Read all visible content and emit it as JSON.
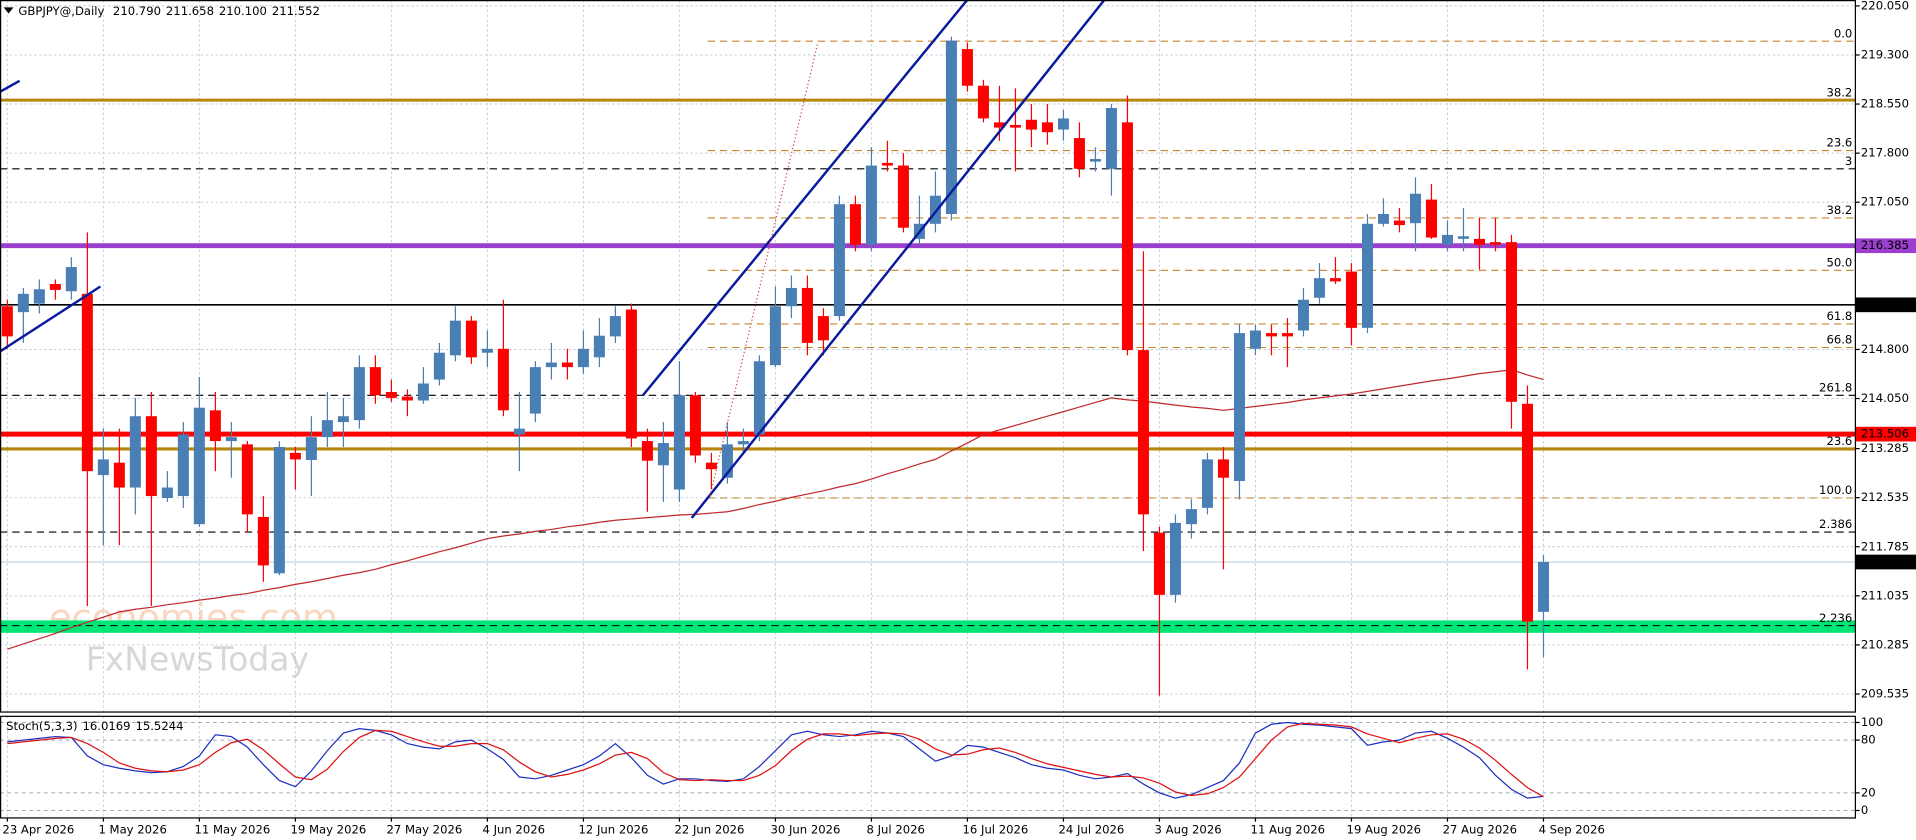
{
  "chart_data": [
    {
      "type": "candlestick",
      "title": "GBPJPY@,Daily",
      "ohlc_labels": [
        "210.790",
        "211.658",
        "210.100",
        "211.552"
      ],
      "categories": [
        "23 Apr 2026",
        null,
        null,
        null,
        null,
        null,
        "1 May 2026",
        null,
        null,
        null,
        null,
        null,
        "11 May 2026",
        null,
        null,
        null,
        null,
        null,
        "19 May 2026",
        null,
        null,
        null,
        null,
        null,
        "27 May 2026",
        null,
        null,
        null,
        null,
        null,
        "4 Jun 2026",
        null,
        null,
        null,
        null,
        null,
        "12 Jun 2026",
        null,
        null,
        null,
        null,
        null,
        "22 Jun 2026",
        null,
        null,
        null,
        null,
        null,
        "30 Jun 2026",
        null,
        null,
        null,
        null,
        null,
        "8 Jul 2026",
        null,
        null,
        null,
        null,
        null,
        "16 Jul 2026",
        null,
        null,
        null,
        null,
        null,
        "24 Jul 2026",
        null,
        null,
        null,
        null,
        null,
        "3 Aug 2026",
        null,
        null,
        null,
        null,
        null,
        "11 Aug 2026",
        null,
        null,
        null,
        null,
        null,
        "19 Aug 2026",
        null,
        null,
        null,
        null,
        null,
        "27 Aug 2026",
        null,
        null,
        null,
        null,
        null,
        "4 Sep 2026"
      ],
      "open": [
        215.46,
        215.37,
        215.5,
        215.8,
        215.69,
        215.65,
        212.88,
        213.07,
        212.69,
        213.78,
        212.53,
        212.56,
        212.13,
        213.87,
        213.4,
        213.35,
        212.24,
        211.38,
        213.22,
        213.11,
        213.46,
        213.69,
        213.72,
        214.53,
        214.15,
        214.08,
        214.02,
        214.34,
        214.71,
        215.24,
        214.75,
        214.81,
        213.5,
        213.82,
        214.53,
        214.6,
        214.53,
        214.68,
        215.0,
        215.41,
        213.4,
        213.03,
        212.66,
        214.1,
        213.07,
        212.84,
        213.35,
        213.5,
        214.56,
        215.46,
        215.74,
        215.31,
        215.31,
        217.02,
        216.4,
        217.65,
        217.61,
        216.49,
        216.72,
        216.87,
        219.39,
        218.83,
        218.27,
        218.23,
        218.31,
        218.27,
        218.16,
        218.03,
        217.67,
        217.56,
        218.27,
        214.79,
        212.0,
        211.05,
        212.13,
        212.38,
        213.12,
        212.79,
        214.81,
        215.05,
        215.05,
        215.09,
        215.59,
        215.89,
        215.99,
        215.13,
        216.72,
        216.77,
        216.73,
        217.09,
        216.4,
        216.49,
        216.49,
        216.44,
        216.44,
        213.97,
        210.79
      ],
      "high": [
        215.56,
        215.74,
        215.87,
        215.87,
        216.21,
        216.59,
        213.59,
        213.59,
        214.06,
        214.15,
        212.94,
        213.69,
        214.38,
        214.15,
        213.69,
        213.4,
        212.56,
        213.4,
        213.31,
        213.78,
        214.15,
        214.06,
        214.71,
        214.71,
        214.34,
        214.19,
        214.53,
        214.9,
        215.46,
        215.31,
        215.09,
        215.56,
        214.15,
        214.62,
        214.9,
        214.81,
        215.09,
        215.28,
        215.46,
        215.5,
        213.59,
        213.69,
        214.62,
        214.15,
        213.22,
        213.69,
        213.59,
        214.71,
        215.76,
        215.93,
        215.93,
        215.43,
        217.15,
        217.15,
        217.89,
        217.99,
        217.8,
        217.15,
        217.52,
        219.58,
        219.49,
        218.92,
        218.83,
        218.79,
        218.55,
        218.55,
        218.46,
        218.27,
        217.89,
        218.55,
        218.68,
        216.3,
        212.09,
        212.28,
        212.51,
        213.22,
        213.31,
        215.18,
        215.18,
        215.18,
        215.28,
        215.74,
        216.12,
        216.21,
        216.12,
        216.87,
        217.11,
        216.96,
        217.43,
        217.33,
        216.77,
        216.96,
        216.81,
        216.81,
        216.55,
        214.25,
        211.658
      ],
      "low": [
        214.81,
        214.9,
        215.35,
        215.56,
        215.56,
        210.88,
        211.81,
        211.81,
        212.28,
        210.88,
        212.47,
        212.38,
        212.09,
        212.94,
        212.84,
        212.0,
        211.25,
        211.35,
        212.66,
        212.56,
        213.31,
        213.31,
        213.59,
        213.97,
        214.0,
        213.78,
        213.97,
        214.25,
        214.62,
        214.58,
        214.53,
        213.78,
        212.94,
        213.69,
        214.34,
        214.34,
        214.43,
        214.53,
        214.9,
        213.31,
        212.32,
        212.47,
        212.47,
        213.07,
        212.66,
        212.75,
        213.22,
        213.4,
        214.53,
        215.28,
        214.71,
        214.71,
        215.24,
        216.3,
        216.3,
        217.52,
        216.59,
        216.4,
        216.59,
        216.77,
        218.74,
        218.27,
        217.99,
        217.52,
        217.89,
        217.93,
        217.99,
        217.43,
        217.52,
        217.15,
        214.71,
        211.72,
        209.51,
        210.93,
        211.91,
        212.28,
        211.44,
        212.51,
        214.71,
        214.71,
        214.53,
        215.0,
        215.5,
        215.8,
        214.86,
        215.05,
        216.68,
        216.59,
        216.3,
        216.49,
        216.3,
        216.3,
        216.02,
        216.3,
        213.59,
        209.91,
        210.1
      ],
      "close": [
        215.0,
        215.65,
        215.72,
        215.71,
        216.06,
        212.94,
        213.12,
        212.69,
        213.78,
        212.56,
        212.69,
        213.5,
        213.91,
        213.4,
        213.46,
        212.28,
        211.5,
        213.31,
        213.12,
        213.46,
        213.72,
        213.78,
        214.53,
        214.1,
        214.06,
        214.02,
        214.28,
        214.75,
        215.24,
        214.68,
        214.81,
        213.87,
        213.59,
        214.53,
        214.6,
        214.53,
        214.81,
        215.01,
        215.31,
        213.44,
        213.1,
        213.37,
        214.1,
        213.18,
        212.97,
        213.35,
        213.4,
        214.62,
        215.46,
        215.74,
        214.9,
        214.94,
        217.02,
        216.4,
        217.61,
        217.61,
        216.66,
        216.72,
        217.15,
        219.52,
        218.83,
        218.33,
        218.19,
        218.19,
        218.16,
        218.12,
        218.33,
        217.56,
        217.71,
        218.49,
        214.79,
        212.28,
        211.05,
        212.15,
        212.36,
        213.12,
        212.84,
        215.05,
        215.09,
        215.0,
        215.0,
        215.56,
        215.89,
        215.84,
        215.13,
        216.72,
        216.87,
        216.7,
        217.18,
        216.51,
        216.55,
        216.53,
        216.4,
        216.4,
        214.0,
        210.64,
        211.552
      ],
      "up_color": "#4a7fb5",
      "down_color": "#ff0000",
      "ylim": [
        209.25,
        220.14
      ],
      "yticks": [
        {
          "value": 220.05,
          "label": "220.050"
        },
        {
          "value": 219.3,
          "label": "219.300"
        },
        {
          "value": 218.55,
          "label": "218.550"
        },
        {
          "value": 217.8,
          "label": "217.800"
        },
        {
          "value": 217.05,
          "label": "217.050"
        },
        {
          "value": 214.8,
          "label": "214.800"
        },
        {
          "value": 214.05,
          "label": "214.050"
        },
        {
          "value": 213.285,
          "label": "213.285"
        },
        {
          "value": 212.535,
          "label": "212.535"
        },
        {
          "value": 211.785,
          "label": "211.785"
        },
        {
          "value": 211.035,
          "label": "211.035"
        },
        {
          "value": 210.285,
          "label": "210.285"
        },
        {
          "value": 209.535,
          "label": "209.535"
        }
      ],
      "grid": true,
      "overlay": {
        "color": "#c0282d",
        "values": [
          210.22,
          210.3,
          210.38,
          210.46,
          210.55,
          210.63,
          210.71,
          210.79,
          210.83,
          210.86,
          210.9,
          210.93,
          210.97,
          211.0,
          211.04,
          211.07,
          211.12,
          211.16,
          211.21,
          211.25,
          211.3,
          211.35,
          211.39,
          211.44,
          211.51,
          211.57,
          211.64,
          211.71,
          211.77,
          211.84,
          211.91,
          211.95,
          211.98,
          212.02,
          212.05,
          212.09,
          212.12,
          212.16,
          212.19,
          212.21,
          212.23,
          212.25,
          212.27,
          212.28,
          212.3,
          212.32,
          212.37,
          212.43,
          212.48,
          212.54,
          212.59,
          212.64,
          212.7,
          212.75,
          212.82,
          212.9,
          212.97,
          213.05,
          213.12,
          213.25,
          213.37,
          213.5,
          213.57,
          213.64,
          213.71,
          213.78,
          213.85,
          213.92,
          213.99,
          214.06,
          214.03,
          214.01,
          213.98,
          213.95,
          213.92,
          213.9,
          213.87,
          213.9,
          213.93,
          213.96,
          213.99,
          214.03,
          214.06,
          214.09,
          214.12,
          214.16,
          214.2,
          214.24,
          214.28,
          214.32,
          214.35,
          214.39,
          214.43,
          214.46,
          214.49,
          214.41,
          214.34
        ]
      },
      "band": {
        "values": [
          210.47,
          210.66
        ],
        "color": "#00e676"
      },
      "hlines": [
        {
          "value": 218.61,
          "color": "#b8860b",
          "width": 2.5,
          "label": "38.2"
        },
        {
          "value": 213.28,
          "color": "#b8860b",
          "width": 2.5,
          "label": "23.6"
        },
        {
          "value": 216.385,
          "color": "#9b3fcf",
          "width": 4,
          "tag": true
        },
        {
          "value": 215.482,
          "color": "#000000",
          "width": 1.3,
          "tag": true
        },
        {
          "value": 213.506,
          "color": "#ff0000",
          "width": 4,
          "tag": true
        }
      ],
      "dashed_levels": [
        {
          "label": "0.0",
          "value": 219.51,
          "color": "#c8862b",
          "span": "partial"
        },
        {
          "label": "23.6",
          "value": 217.84,
          "color": "#c8862b",
          "span": "partial"
        },
        {
          "label": "3",
          "value": 217.56,
          "color": "#000000",
          "span": "full"
        },
        {
          "label": "38.2",
          "value": 216.81,
          "color": "#c8862b",
          "span": "partial"
        },
        {
          "label": "50.0",
          "value": 216.01,
          "color": "#c8862b",
          "span": "partial"
        },
        {
          "label": "61.8",
          "value": 215.19,
          "color": "#c8862b",
          "span": "partial"
        },
        {
          "label": "66.8",
          "value": 214.83,
          "color": "#c8862b",
          "span": "partial"
        },
        {
          "label": "261.8",
          "value": 214.1,
          "color": "#000000",
          "span": "full"
        },
        {
          "label": "100.0",
          "value": 212.53,
          "color": "#c8862b",
          "span": "partial"
        },
        {
          "label": "2.386",
          "value": 212.01,
          "color": "#000000",
          "span": "full"
        },
        {
          "label": "2.236",
          "value": 210.58,
          "color": "#000000",
          "span": "full"
        }
      ],
      "watermark": [
        "economies.com",
        "FxNewsToday"
      ]
    },
    {
      "type": "line",
      "title": "Stoch(5,3,3)",
      "ylim": [
        -8.5,
        107
      ],
      "yticks": [
        100,
        80,
        20,
        0
      ],
      "grid": true,
      "series": [
        {
          "color": "#1c2fc0",
          "values": [
            78,
            80,
            82,
            84,
            83,
            62,
            52,
            48,
            45,
            43,
            44,
            50,
            62,
            86,
            84,
            72,
            52,
            34,
            27,
            45,
            68,
            88,
            93,
            91,
            86,
            76,
            72,
            70,
            78,
            80,
            70,
            58,
            38,
            36,
            40,
            46,
            52,
            62,
            76,
            60,
            40,
            30,
            36,
            36,
            34,
            33,
            36,
            50,
            68,
            86,
            90,
            86,
            84,
            86,
            90,
            88,
            84,
            70,
            56,
            62,
            74,
            72,
            66,
            60,
            52,
            48,
            46,
            40,
            36,
            38,
            42,
            30,
            20,
            14,
            18,
            26,
            34,
            54,
            88,
            98,
            100,
            98,
            97,
            95,
            93,
            74,
            78,
            80,
            88,
            90,
            82,
            72,
            60,
            40,
            24,
            14,
            16.0169
          ]
        },
        {
          "color": "#e01010",
          "values": [
            76,
            78,
            80,
            82,
            83,
            76,
            66,
            54,
            48,
            45,
            44,
            46,
            52,
            66,
            77,
            81,
            69,
            53,
            38,
            35,
            47,
            67,
            83,
            91,
            90,
            84,
            78,
            73,
            73,
            76,
            76,
            69,
            55,
            44,
            38,
            41,
            46,
            53,
            63,
            66,
            59,
            43,
            35,
            34,
            35,
            34,
            34,
            40,
            51,
            68,
            81,
            87,
            87,
            85,
            87,
            88,
            87,
            81,
            70,
            63,
            64,
            69,
            71,
            66,
            59,
            53,
            49,
            45,
            41,
            38,
            39,
            37,
            31,
            21,
            17,
            19,
            26,
            38,
            59,
            80,
            95,
            99,
            98,
            97,
            95,
            87,
            82,
            77,
            82,
            86,
            87,
            81,
            71,
            57,
            41,
            26,
            15.5244
          ]
        }
      ]
    }
  ]
}
